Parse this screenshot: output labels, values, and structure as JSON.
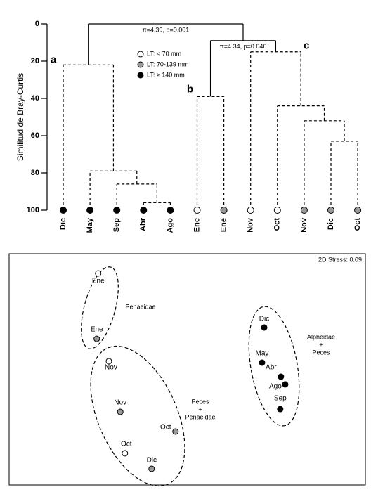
{
  "chart_data": [
    {
      "type": "dendrogram",
      "ylabel": "Similitud de Bray-Curtis",
      "ylim": [
        0,
        100
      ],
      "yticks": [
        0,
        20,
        40,
        60,
        80,
        100
      ],
      "legend": [
        {
          "name": "LT: < 70 mm",
          "color": "#ffffff"
        },
        {
          "name": "LT:  70-139 mm",
          "color": "#999999"
        },
        {
          "name": "LT: ≥ 140 mm",
          "color": "#000000"
        }
      ],
      "leaves": [
        {
          "label": "Dic",
          "class": 2
        },
        {
          "label": "May",
          "class": 2
        },
        {
          "label": "Sep",
          "class": 2
        },
        {
          "label": "Abr",
          "class": 2
        },
        {
          "label": "Ago",
          "class": 2
        },
        {
          "label": "Ene",
          "class": 0
        },
        {
          "label": "Ene",
          "class": 1
        },
        {
          "label": "Nov",
          "class": 0
        },
        {
          "label": "Oct",
          "class": 0
        },
        {
          "label": "Nov",
          "class": 1
        },
        {
          "label": "Dic",
          "class": 1
        },
        {
          "label": "Oct",
          "class": 1
        }
      ],
      "merges": [
        {
          "children": [
            3,
            4
          ],
          "height": 96
        },
        {
          "children": [
            2,
            12
          ],
          "height": 86
        },
        {
          "children": [
            1,
            13
          ],
          "height": 79
        },
        {
          "children": [
            0,
            14
          ],
          "height": 22,
          "label": "a"
        },
        {
          "children": [
            5,
            6
          ],
          "height": 39,
          "label": "b"
        },
        {
          "children": [
            10,
            11
          ],
          "height": 63
        },
        {
          "children": [
            9,
            17
          ],
          "height": 52
        },
        {
          "children": [
            8,
            18
          ],
          "height": 44
        },
        {
          "children": [
            7,
            19
          ],
          "height": 15,
          "label": "c"
        },
        {
          "children": [
            16,
            20
          ],
          "height": 9,
          "annotation": "π=4.34, p=0.046",
          "solid": true
        },
        {
          "children": [
            15,
            21
          ],
          "height": 0,
          "annotation": "π=4.39, p=0.001",
          "solid": true
        }
      ]
    },
    {
      "type": "scatter",
      "annotation": "2D Stress: 0.09",
      "xlim": [
        0,
        100
      ],
      "ylim": [
        0,
        100
      ],
      "points": [
        {
          "label": "Ene",
          "class": 0,
          "x": 25.0,
          "y": 91.5
        },
        {
          "label": "Ene",
          "class": 1,
          "x": 24.6,
          "y": 63.2
        },
        {
          "label": "Nov",
          "class": 0,
          "x": 28.0,
          "y": 53.5
        },
        {
          "label": "Nov",
          "class": 1,
          "x": 31.2,
          "y": 31.6
        },
        {
          "label": "Oct",
          "class": 1,
          "x": 46.7,
          "y": 23.1
        },
        {
          "label": "Oct",
          "class": 0,
          "x": 32.5,
          "y": 13.7
        },
        {
          "label": "Dic",
          "class": 1,
          "x": 40.0,
          "y": 7.0
        },
        {
          "label": "Dic",
          "class": 2,
          "x": 71.6,
          "y": 68.1
        },
        {
          "label": "May",
          "class": 2,
          "x": 71.0,
          "y": 52.9
        },
        {
          "label": "Abr",
          "class": 2,
          "x": 76.3,
          "y": 46.8
        },
        {
          "label": "Ago",
          "class": 2,
          "x": 77.5,
          "y": 43.5
        },
        {
          "label": "Sep",
          "class": 2,
          "x": 76.1,
          "y": 32.8
        }
      ],
      "groups": [
        [
          "Penaeidae"
        ],
        [
          "Peces",
          "+",
          "Penaeidae"
        ],
        [
          "Alpheidae",
          "+",
          "Peces"
        ]
      ]
    }
  ]
}
